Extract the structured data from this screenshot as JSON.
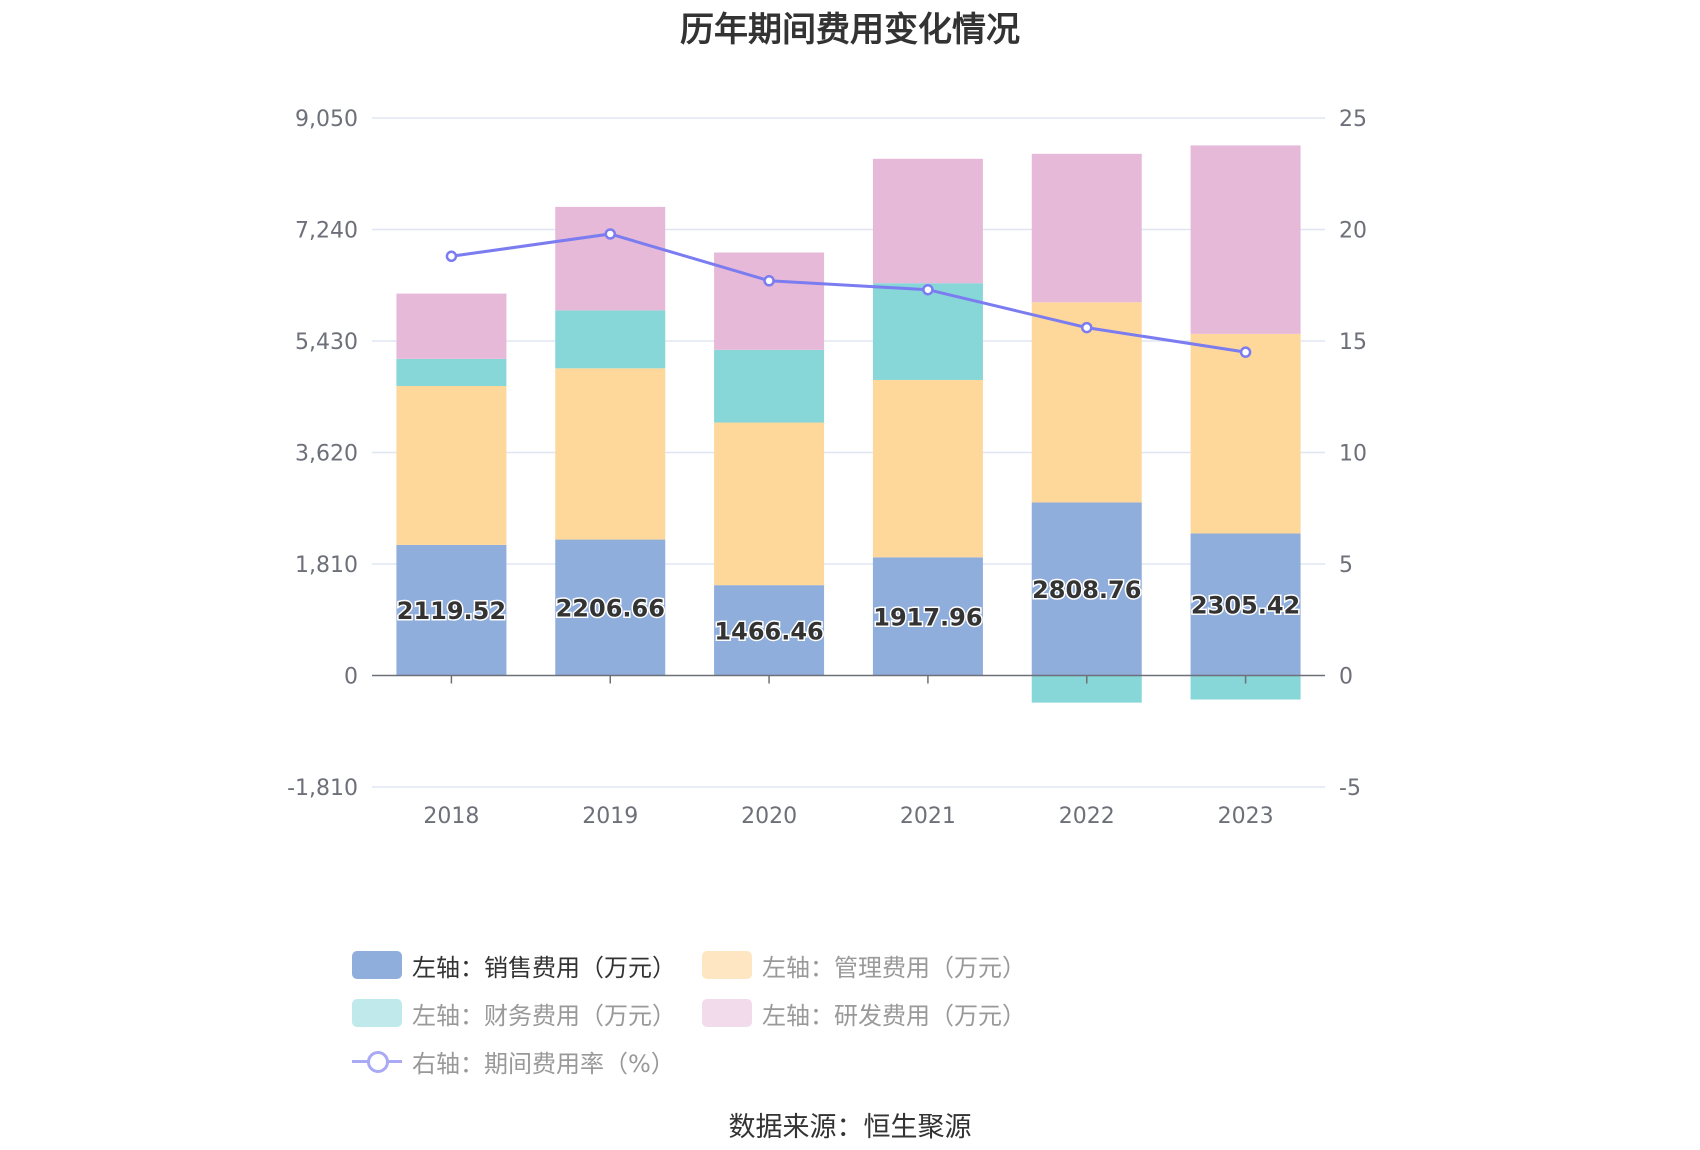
{
  "chart_data": {
    "type": "bar",
    "title": "历年期间费用变化情况",
    "categories": [
      "2018",
      "2019",
      "2020",
      "2021",
      "2022",
      "2023"
    ],
    "y_left": {
      "ticks": [
        "9,050",
        "7,240",
        "5,430",
        "3,620",
        "1,810",
        "0",
        "-1,810"
      ],
      "min": -1810,
      "max": 9050
    },
    "y_right": {
      "ticks": [
        "25",
        "20",
        "15",
        "10",
        "5",
        "0",
        "-5"
      ],
      "min": -5,
      "max": 25
    },
    "series": [
      {
        "name": "左轴：销售费用（万元）",
        "type": "bar",
        "axis": "left",
        "color": "#8faedb",
        "values": [
          2119.52,
          2206.66,
          1466.46,
          1917.96,
          2808.76,
          2305.42
        ],
        "labels": [
          "2119.52",
          "2206.66",
          "1466.46",
          "1917.96",
          "2808.76",
          "2305.42"
        ]
      },
      {
        "name": "左轴：管理费用（万元）",
        "type": "bar",
        "axis": "left",
        "color": "#fed89b",
        "values": [
          2580,
          2780,
          2640,
          2880,
          3250,
          3240
        ]
      },
      {
        "name": "左轴：财务费用（万元）",
        "type": "bar",
        "axis": "left",
        "color": "#87d6d8",
        "values": [
          440,
          940,
          1180,
          1570,
          -440,
          -390
        ]
      },
      {
        "name": "左轴：研发费用（万元）",
        "type": "bar",
        "axis": "left",
        "color": "#e7b9d8",
        "values": [
          1060,
          1680,
          1580,
          2020,
          2410,
          3060
        ]
      },
      {
        "name": "右轴：期间费用率（%）",
        "type": "line",
        "axis": "right",
        "color": "#7b7cf0",
        "values": [
          18.8,
          19.8,
          17.7,
          17.3,
          15.6,
          14.5
        ]
      }
    ],
    "legend_position": "bottom",
    "grid": true
  },
  "legend": {
    "items": [
      {
        "label": "左轴：销售费用（万元）",
        "color": "#8faedb",
        "kind": "bar",
        "dim": false
      },
      {
        "label": "左轴：管理费用（万元）",
        "color": "#fee6c2",
        "kind": "bar",
        "dim": true
      },
      {
        "label": "左轴：财务费用（万元）",
        "color": "#bfe9ea",
        "kind": "bar",
        "dim": true
      },
      {
        "label": "左轴：研发费用（万元）",
        "color": "#f2dbeb",
        "kind": "bar",
        "dim": true
      },
      {
        "label": "右轴：期间费用率（%）",
        "color": "#a9a9f4",
        "kind": "line",
        "dim": true
      }
    ]
  },
  "source": "数据来源：恒生聚源"
}
